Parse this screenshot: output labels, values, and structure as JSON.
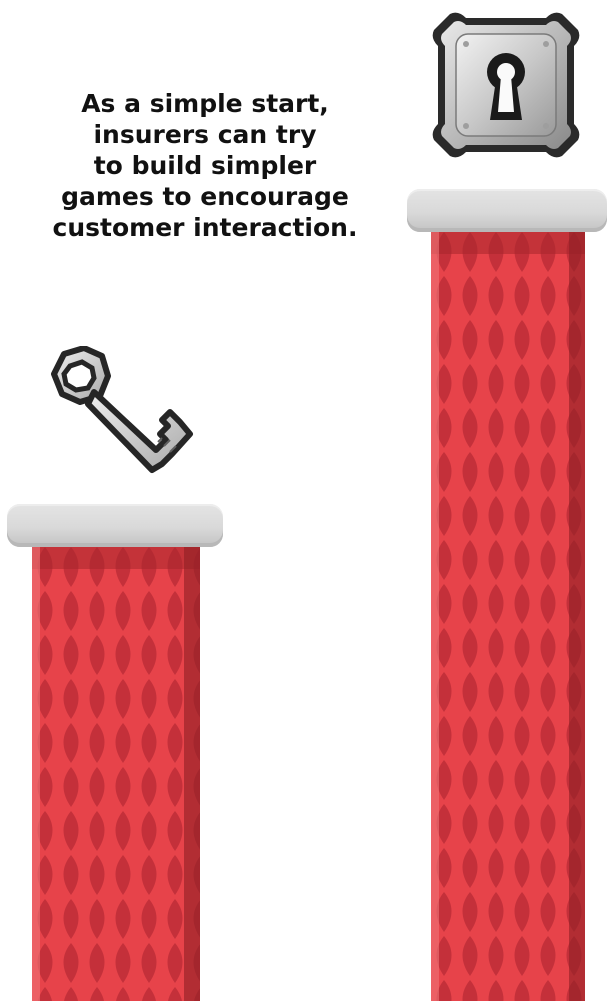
{
  "caption": {
    "lines": [
      "As a simple start,",
      "insurers can try",
      "to build simpler",
      "games to encourage",
      "customer interaction."
    ]
  },
  "icons": {
    "key": "key-icon",
    "lock": "lock-icon"
  },
  "colors": {
    "pillar_red": "#e24048",
    "pillar_dark": "#b92a2f",
    "cap_gray": "#d9d9d9",
    "icon_metal": "#d6d6d6"
  }
}
